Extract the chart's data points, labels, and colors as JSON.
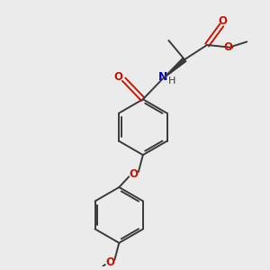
{
  "background_color": "#ebebeb",
  "bond_color": "#3a3a3a",
  "oxygen_color": "#cc1100",
  "nitrogen_color": "#0000cc",
  "figsize": [
    3.0,
    3.0
  ],
  "dpi": 100,
  "xlim": [
    0,
    10
  ],
  "ylim": [
    0,
    10
  ]
}
